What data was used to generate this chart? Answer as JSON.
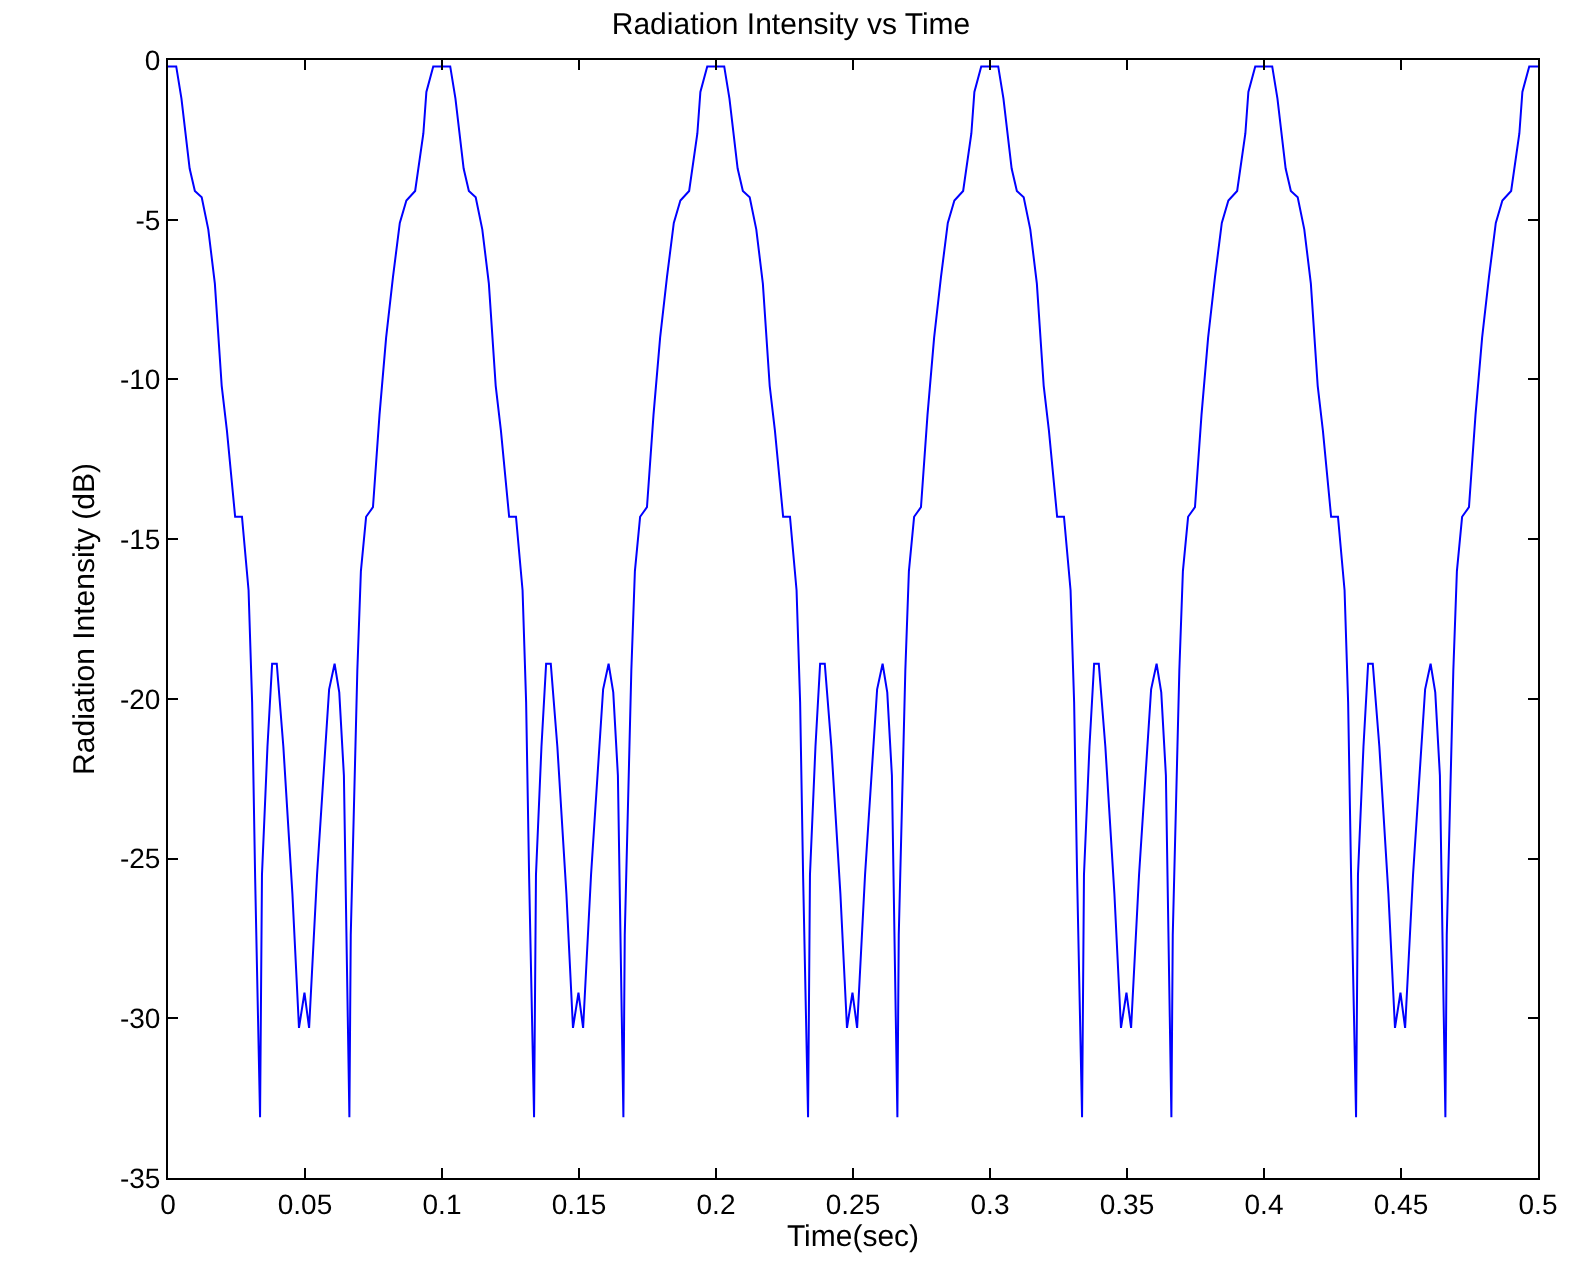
{
  "chart_data": {
    "type": "line",
    "title": "Radiation Intensity vs Time",
    "xlabel": "Time(sec)",
    "ylabel": "Radiation Intensity (dB)",
    "x": [
      0,
      0.003,
      0.0049,
      0.0079,
      0.0098,
      0.0123,
      0.0147,
      0.0171,
      0.0196,
      0.0215,
      0.0245,
      0.027,
      0.0294,
      0.0307,
      0.0318,
      0.0336,
      0.0343,
      0.0363,
      0.038,
      0.0397,
      0.0421,
      0.0454,
      0.0478,
      0.0498,
      0.0515,
      0.0544,
      0.0588,
      0.0608,
      0.0625,
      0.0642,
      0.0662,
      0.0667,
      0.0691,
      0.0704,
      0.0723,
      0.0748,
      0.0772,
      0.0796,
      0.0821,
      0.0846,
      0.087,
      0.0902,
      0.0932,
      0.0943,
      0.0968,
      0.1,
      0.103,
      0.1049,
      0.1079,
      0.1098,
      0.1123,
      0.1147,
      0.1171,
      0.1196,
      0.1215,
      0.1245,
      0.127,
      0.1294,
      0.1307,
      0.1318,
      0.1336,
      0.1343,
      0.1363,
      0.138,
      0.1397,
      0.1421,
      0.1454,
      0.1478,
      0.1498,
      0.1515,
      0.1544,
      0.1588,
      0.1608,
      0.1625,
      0.1642,
      0.1662,
      0.1667,
      0.1691,
      0.1704,
      0.1723,
      0.1748,
      0.1772,
      0.1796,
      0.1821,
      0.1846,
      0.187,
      0.1902,
      0.1932,
      0.1943,
      0.1968,
      0.2,
      0.203,
      0.2049,
      0.2079,
      0.2098,
      0.2123,
      0.2147,
      0.2171,
      0.2196,
      0.2215,
      0.2245,
      0.227,
      0.2294,
      0.2307,
      0.2318,
      0.2336,
      0.2343,
      0.2363,
      0.238,
      0.2397,
      0.2421,
      0.2454,
      0.2478,
      0.2498,
      0.2515,
      0.2544,
      0.2588,
      0.2608,
      0.2625,
      0.2642,
      0.2662,
      0.2667,
      0.2691,
      0.2704,
      0.2723,
      0.2748,
      0.2772,
      0.2796,
      0.2821,
      0.2846,
      0.287,
      0.2902,
      0.2932,
      0.2943,
      0.2968,
      0.3,
      0.303,
      0.3049,
      0.3079,
      0.3098,
      0.3123,
      0.3147,
      0.3171,
      0.3196,
      0.3215,
      0.3245,
      0.327,
      0.3294,
      0.3307,
      0.3318,
      0.3336,
      0.3343,
      0.3363,
      0.338,
      0.3397,
      0.3421,
      0.3454,
      0.3478,
      0.3498,
      0.3515,
      0.3544,
      0.3588,
      0.3608,
      0.3625,
      0.3642,
      0.3662,
      0.3667,
      0.3691,
      0.3704,
      0.3723,
      0.3748,
      0.3772,
      0.3796,
      0.3821,
      0.3846,
      0.387,
      0.3902,
      0.3932,
      0.3943,
      0.3968,
      0.4,
      0.403,
      0.4049,
      0.4079,
      0.4098,
      0.4123,
      0.4147,
      0.4171,
      0.4196,
      0.4215,
      0.4245,
      0.427,
      0.4294,
      0.4307,
      0.4318,
      0.4336,
      0.4343,
      0.4363,
      0.438,
      0.4397,
      0.4421,
      0.4454,
      0.4478,
      0.4498,
      0.4515,
      0.4544,
      0.4588,
      0.4608,
      0.4625,
      0.4642,
      0.4662,
      0.4667,
      0.4691,
      0.4704,
      0.4723,
      0.4748,
      0.4772,
      0.4796,
      0.4821,
      0.4846,
      0.487,
      0.4902,
      0.4932,
      0.4943,
      0.4968,
      0.5
    ],
    "series": [
      {
        "color": "#0000ff",
        "values": [
          -0.2,
          -0.2,
          -1.2,
          -3.4,
          -4.1,
          -4.3,
          -5.3,
          -7.0,
          -10.2,
          -11.6,
          -14.3,
          -14.3,
          -16.6,
          -20.1,
          -25.6,
          -33.1,
          -25.5,
          -21.5,
          -18.9,
          -18.9,
          -21.5,
          -26.1,
          -30.3,
          -29.2,
          -30.3,
          -25.5,
          -19.7,
          -18.9,
          -19.8,
          -22.4,
          -33.1,
          -27.4,
          -19.1,
          -16.0,
          -14.3,
          -14.0,
          -11.1,
          -8.7,
          -6.8,
          -5.1,
          -4.4,
          -4.1,
          -2.3,
          -1.0,
          -0.2,
          -0.2,
          -0.2,
          -1.2,
          -3.4,
          -4.1,
          -4.3,
          -5.3,
          -7.0,
          -10.2,
          -11.6,
          -14.3,
          -14.3,
          -16.6,
          -20.1,
          -25.6,
          -33.1,
          -25.5,
          -21.5,
          -18.9,
          -18.9,
          -21.5,
          -26.1,
          -30.3,
          -29.2,
          -30.3,
          -25.5,
          -19.7,
          -18.9,
          -19.8,
          -22.4,
          -33.1,
          -27.4,
          -19.1,
          -16.0,
          -14.3,
          -14.0,
          -11.1,
          -8.7,
          -6.8,
          -5.1,
          -4.4,
          -4.1,
          -2.3,
          -1.0,
          -0.2,
          -0.2,
          -0.2,
          -1.2,
          -3.4,
          -4.1,
          -4.3,
          -5.3,
          -7.0,
          -10.2,
          -11.6,
          -14.3,
          -14.3,
          -16.6,
          -20.1,
          -25.6,
          -33.1,
          -25.5,
          -21.5,
          -18.9,
          -18.9,
          -21.5,
          -26.1,
          -30.3,
          -29.2,
          -30.3,
          -25.5,
          -19.7,
          -18.9,
          -19.8,
          -22.4,
          -33.1,
          -27.4,
          -19.1,
          -16.0,
          -14.3,
          -14.0,
          -11.1,
          -8.7,
          -6.8,
          -5.1,
          -4.4,
          -4.1,
          -2.3,
          -1.0,
          -0.2,
          -0.2,
          -0.2,
          -1.2,
          -3.4,
          -4.1,
          -4.3,
          -5.3,
          -7.0,
          -10.2,
          -11.6,
          -14.3,
          -14.3,
          -16.6,
          -20.1,
          -25.6,
          -33.1,
          -25.5,
          -21.5,
          -18.9,
          -18.9,
          -21.5,
          -26.1,
          -30.3,
          -29.2,
          -30.3,
          -25.5,
          -19.7,
          -18.9,
          -19.8,
          -22.4,
          -33.1,
          -27.4,
          -19.1,
          -16.0,
          -14.3,
          -14.0,
          -11.1,
          -8.7,
          -6.8,
          -5.1,
          -4.4,
          -4.1,
          -2.3,
          -1.0,
          -0.2,
          -0.2,
          -0.2,
          -1.2,
          -3.4,
          -4.1,
          -4.3,
          -5.3,
          -7.0,
          -10.2,
          -11.6,
          -14.3,
          -14.3,
          -16.6,
          -20.1,
          -25.6,
          -33.1,
          -25.5,
          -21.5,
          -18.9,
          -18.9,
          -21.5,
          -26.1,
          -30.3,
          -29.2,
          -30.3,
          -25.5,
          -19.7,
          -18.9,
          -19.8,
          -22.4,
          -33.1,
          -27.4,
          -19.1,
          -16.0,
          -14.3,
          -14.0,
          -11.1,
          -8.7,
          -6.8,
          -5.1,
          -4.4,
          -4.1,
          -2.3,
          -1.0,
          -0.2,
          -0.2
        ]
      }
    ],
    "xlim": [
      0,
      0.5
    ],
    "xticks": [
      0,
      0.05,
      0.1,
      0.15,
      0.2,
      0.25,
      0.3,
      0.35,
      0.4,
      0.45,
      0.5
    ],
    "ylim": [
      -35,
      0
    ],
    "yticks": [
      -35,
      -30,
      -25,
      -20,
      -15,
      -10,
      -5,
      0
    ],
    "grid": false,
    "marker": "none",
    "line_style": "solid"
  }
}
